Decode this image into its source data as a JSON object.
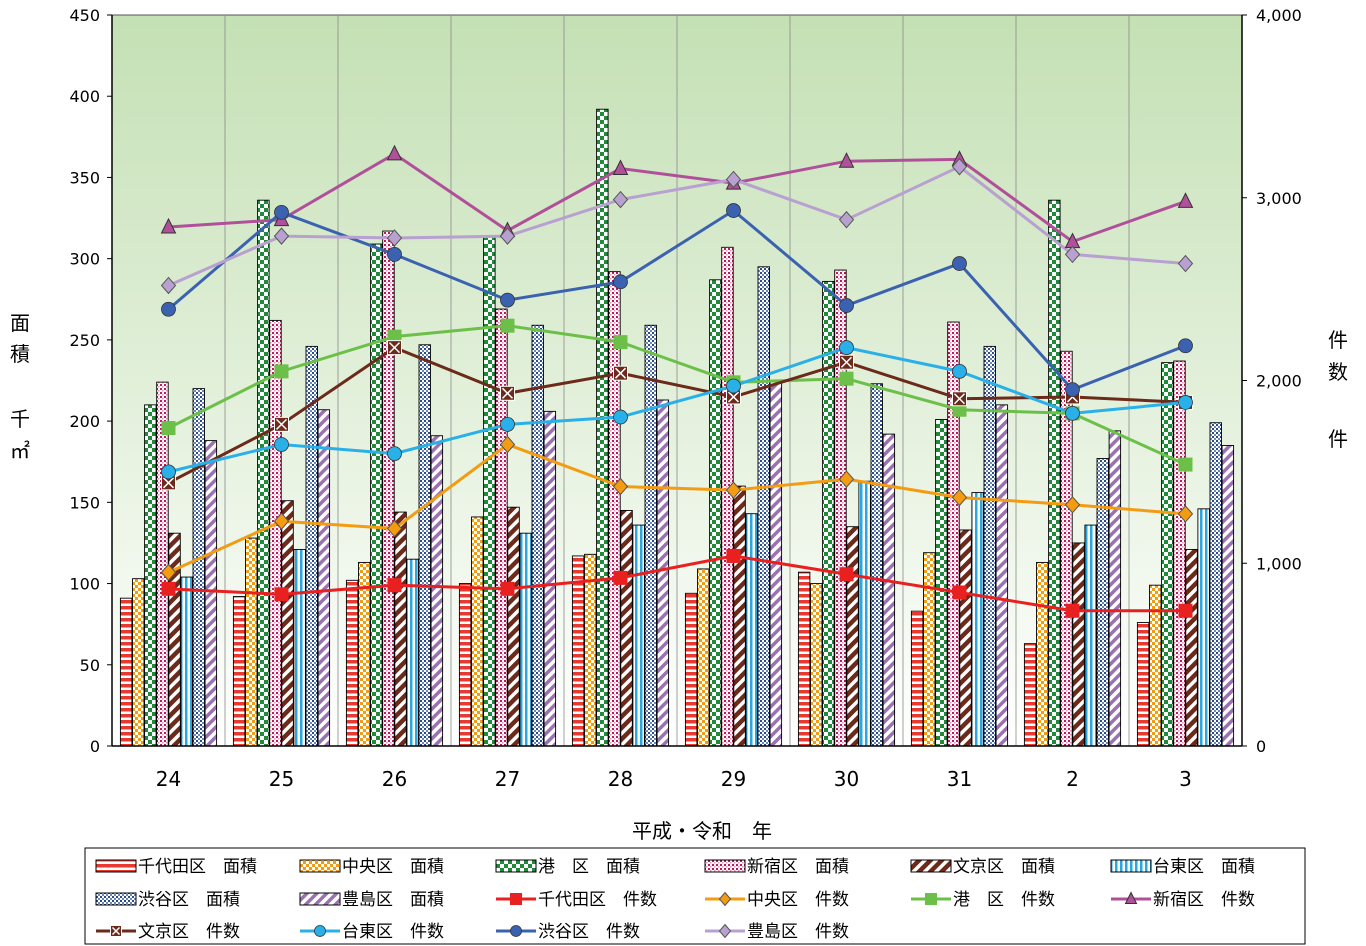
{
  "chart_data": {
    "type": "bar",
    "categories": [
      "24",
      "25",
      "26",
      "27",
      "28",
      "29",
      "30",
      "31",
      "2",
      "3"
    ],
    "xlabel": "平成・令和　年",
    "ylabel_left_chars": [
      "面",
      "積",
      "",
      "千",
      "㎡"
    ],
    "ylabel_right_chars": [
      "件",
      "数",
      "",
      "件"
    ],
    "ylim_left": [
      0,
      450
    ],
    "ylim_right": [
      0,
      4000
    ],
    "yticks_left": [
      "0",
      "50",
      "100",
      "150",
      "200",
      "250",
      "300",
      "350",
      "400",
      "450"
    ],
    "yticks_right": [
      "0",
      "1,000",
      "2,000",
      "3,000",
      "4,000"
    ],
    "bar_series": [
      {
        "name": "千代田区　面積",
        "color": "#e8382f",
        "pattern": "hstripe",
        "values": [
          91,
          92,
          102,
          100,
          117,
          94,
          107,
          83,
          63,
          76
        ]
      },
      {
        "name": "中央区　面積",
        "color": "#f39c12",
        "pattern": "check",
        "values": [
          103,
          128,
          113,
          141,
          118,
          109,
          100,
          119,
          113,
          99
        ]
      },
      {
        "name": "港　区　面積",
        "color": "#1e8a3a",
        "pattern": "check",
        "values": [
          210,
          336,
          309,
          314,
          392,
          287,
          286,
          201,
          336,
          236
        ]
      },
      {
        "name": "新宿区　面積",
        "color": "#c2185b",
        "pattern": "dots",
        "values": [
          224,
          262,
          317,
          269,
          292,
          307,
          293,
          261,
          243,
          237
        ]
      },
      {
        "name": "文京区　面積",
        "color": "#6b2a1a",
        "pattern": "dstripe",
        "values": [
          131,
          151,
          144,
          147,
          145,
          160,
          135,
          133,
          125,
          121
        ]
      },
      {
        "name": "台東区　面積",
        "color": "#29a8e0",
        "pattern": "vstripe",
        "values": [
          104,
          121,
          115,
          131,
          136,
          143,
          163,
          156,
          136,
          146
        ]
      },
      {
        "name": "渋谷区　面積",
        "color": "#2b4c8c",
        "pattern": "dots",
        "values": [
          220,
          246,
          247,
          259,
          259,
          295,
          223,
          246,
          177,
          199
        ]
      },
      {
        "name": "豊島区　面積",
        "color": "#9b72b0",
        "pattern": "dstripe",
        "values": [
          188,
          207,
          191,
          206,
          213,
          225,
          192,
          210,
          194,
          185
        ]
      }
    ],
    "line_series": [
      {
        "name": "千代田区　件数",
        "color": "#e82020",
        "marker": "square",
        "values": [
          860,
          830,
          880,
          860,
          920,
          1040,
          940,
          840,
          740,
          740
        ]
      },
      {
        "name": "中央区　件数",
        "color": "#f39c12",
        "marker": "diamond",
        "values": [
          950,
          1230,
          1190,
          1650,
          1420,
          1400,
          1460,
          1360,
          1320,
          1270
        ]
      },
      {
        "name": "港　区　件数",
        "color": "#6cc04a",
        "marker": "square",
        "values": [
          1740,
          2050,
          2240,
          2300,
          2210,
          1990,
          2010,
          1840,
          1820,
          1540
        ]
      },
      {
        "name": "新宿区　件数",
        "color": "#b0509a",
        "marker": "triangle",
        "values": [
          2840,
          2880,
          3240,
          2820,
          3160,
          3080,
          3200,
          3210,
          2760,
          2980
        ]
      },
      {
        "name": "文京区　件数",
        "color": "#6b2a1a",
        "marker": "xsquare",
        "values": [
          1440,
          1760,
          2180,
          1930,
          2040,
          1910,
          2100,
          1900,
          1910,
          1880
        ]
      },
      {
        "name": "台東区　件数",
        "color": "#29b0e8",
        "marker": "circle",
        "values": [
          1500,
          1650,
          1600,
          1760,
          1800,
          1970,
          2180,
          2050,
          1820,
          1880
        ]
      },
      {
        "name": "渋谷区　件数",
        "color": "#3a62b0",
        "marker": "circle",
        "values": [
          2390,
          2920,
          2690,
          2440,
          2540,
          2930,
          2410,
          2640,
          1950,
          2190
        ]
      },
      {
        "name": "豊島区　件数",
        "color": "#b8a0d0",
        "marker": "diamond",
        "values": [
          2520,
          2790,
          2780,
          2790,
          2990,
          3100,
          2880,
          3170,
          2690,
          2640
        ]
      }
    ],
    "grid": true,
    "legend_position": "bottom"
  }
}
